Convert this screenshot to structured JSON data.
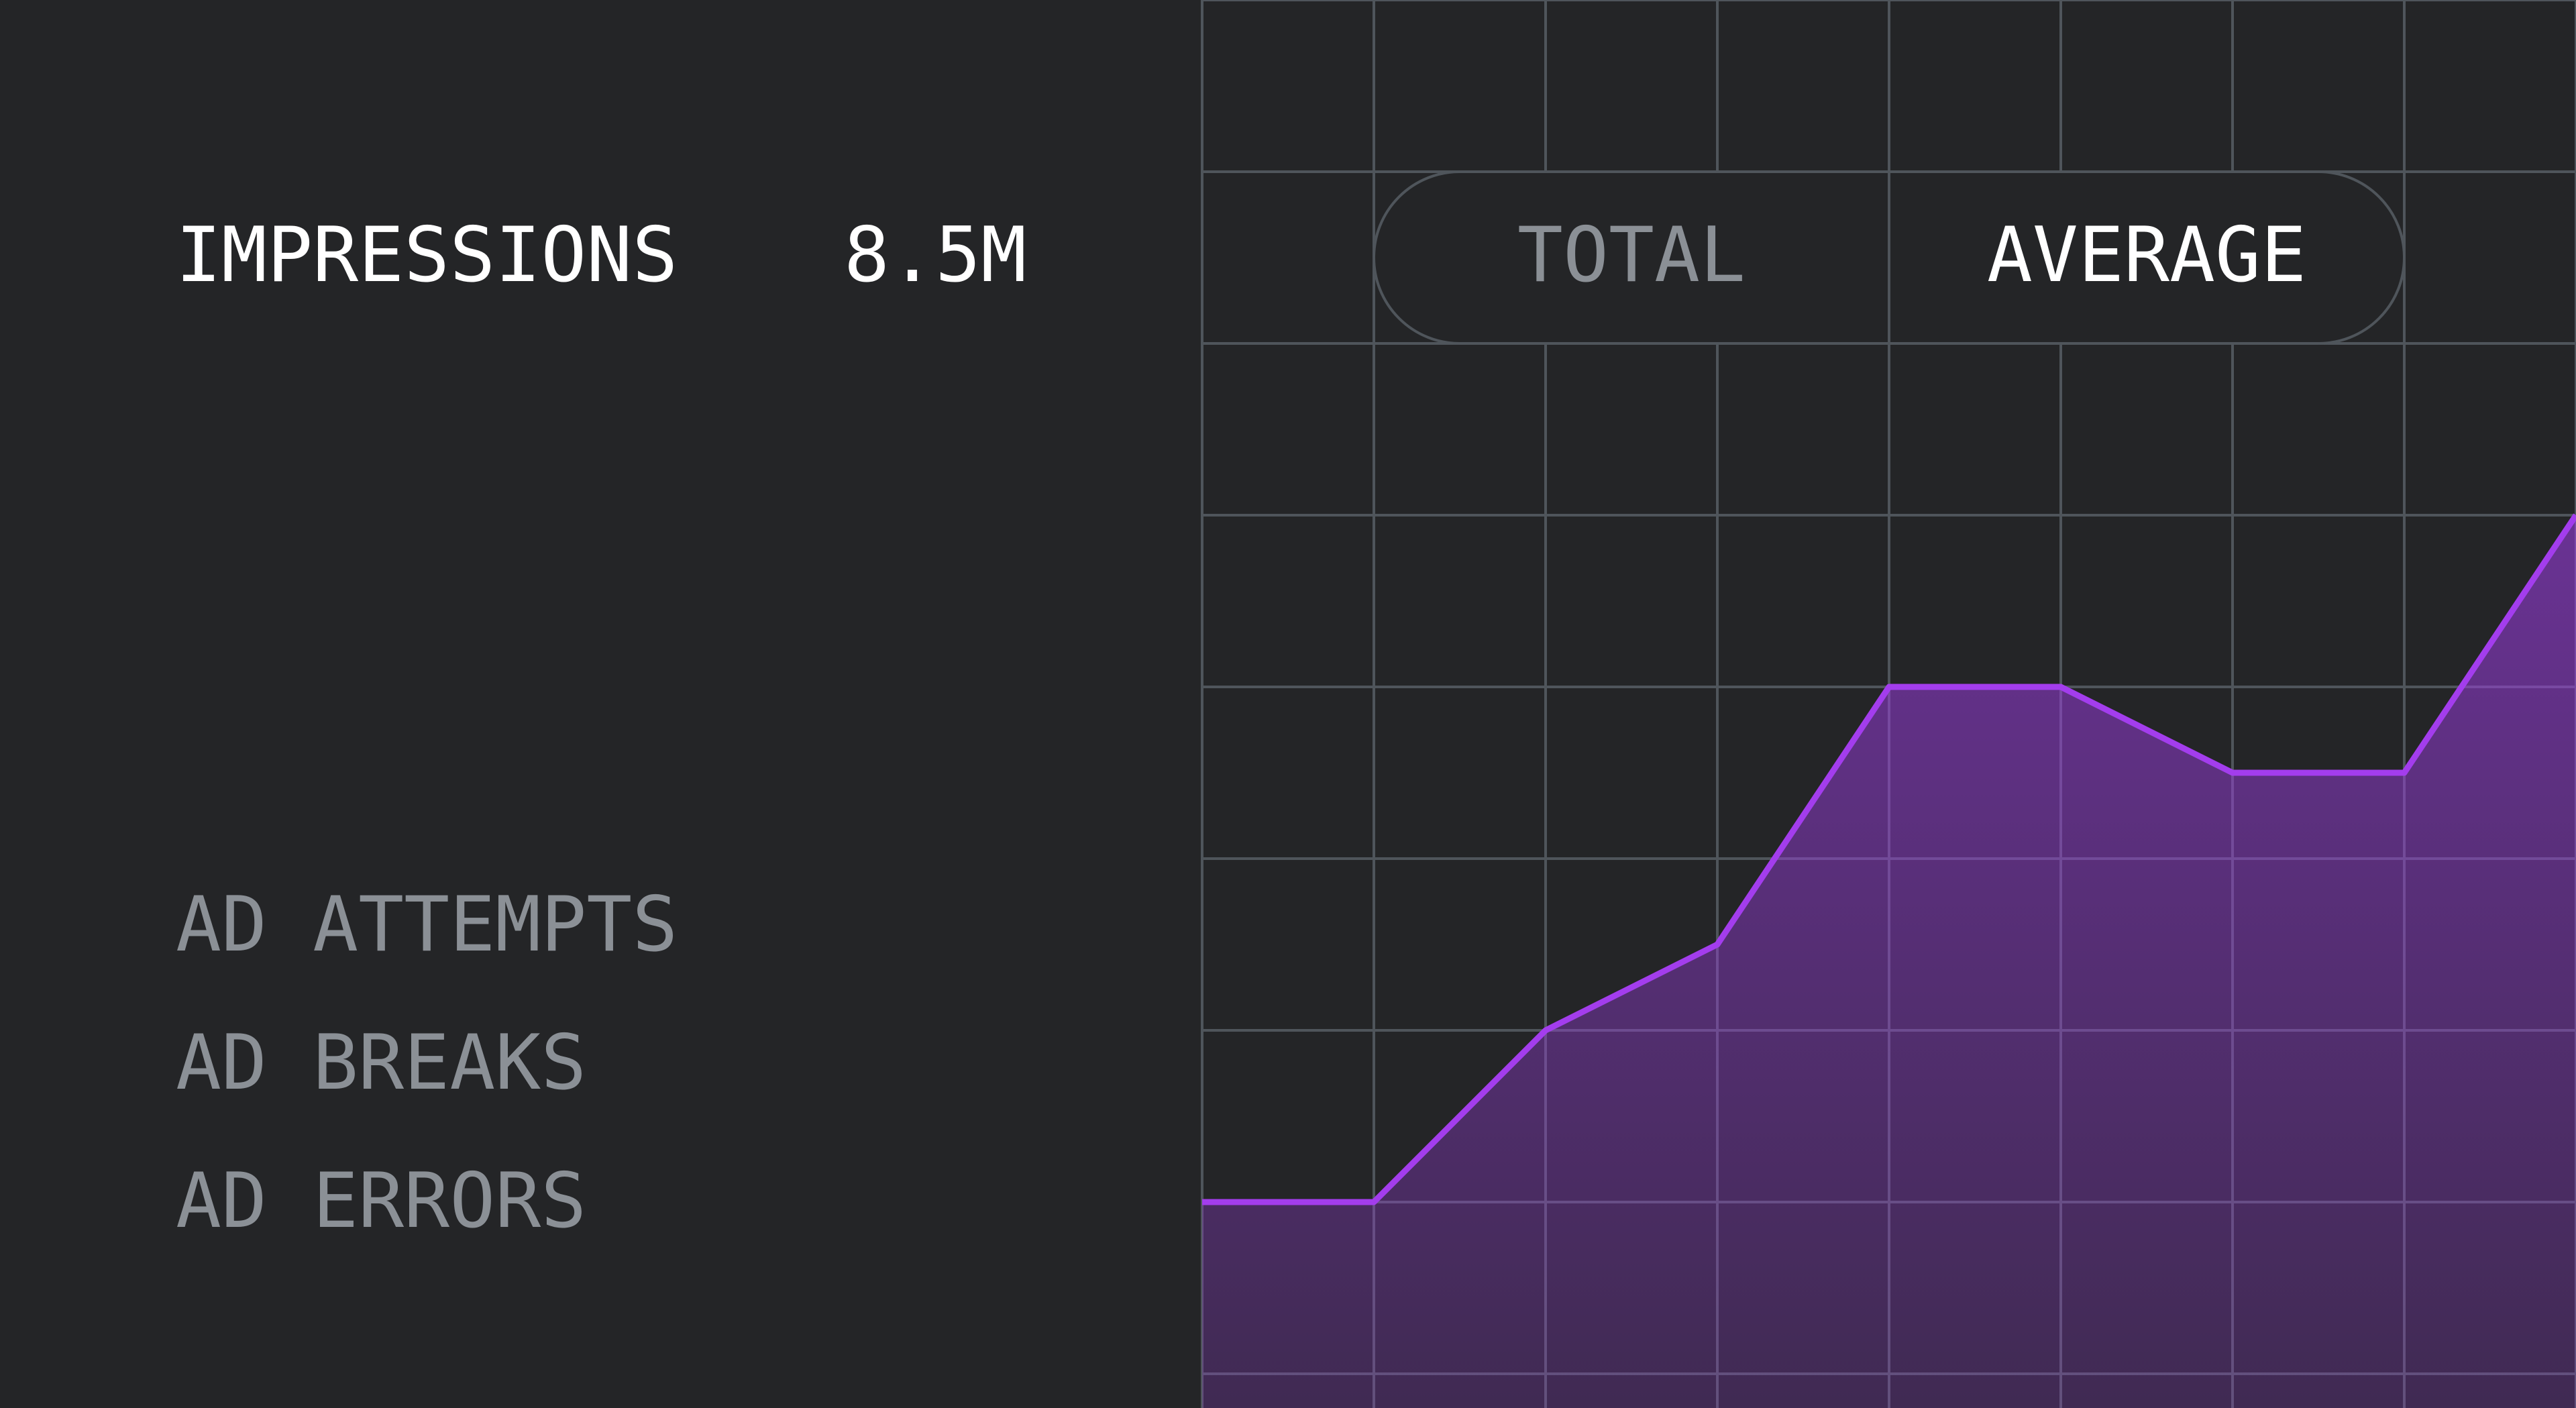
{
  "metric": {
    "label": "IMPRESSIONS",
    "value": "8.5M"
  },
  "toggle": {
    "options": [
      "TOTAL",
      "AVERAGE"
    ],
    "selected": 1
  },
  "menu": [
    "AD ATTEMPTS",
    "AD BREAKS",
    "AD ERRORS"
  ],
  "chart_data": {
    "type": "area",
    "values": [
      1,
      1,
      2,
      2.5,
      4,
      4,
      3.5,
      3.5,
      5
    ],
    "ylim": [
      0,
      8
    ],
    "yticks": [
      0,
      1,
      2,
      3,
      4,
      5,
      6,
      7,
      8
    ],
    "grid": true,
    "color": "#a33ded"
  }
}
